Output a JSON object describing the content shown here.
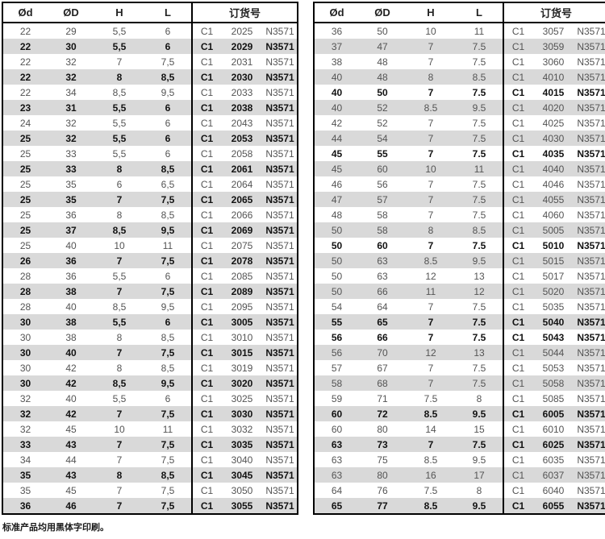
{
  "header": {
    "col_d": "Ød",
    "col_D": "ØD",
    "col_H": "H",
    "col_L": "L",
    "order": "订货号"
  },
  "footer_note": "标准产品均用黑体字印刷。",
  "colors": {
    "zebra": "#d9d9d9",
    "border": "#000000",
    "regular_text": "#545454",
    "bold_text": "#121212"
  },
  "tables": [
    {
      "rows": [
        {
          "cells": [
            "22",
            "29",
            "5,5",
            "6",
            "C1",
            "2025",
            "N3571"
          ],
          "bold": false
        },
        {
          "cells": [
            "22",
            "30",
            "5,5",
            "6",
            "C1",
            "2029",
            "N3571"
          ],
          "bold": true
        },
        {
          "cells": [
            "22",
            "32",
            "7",
            "7,5",
            "C1",
            "2031",
            "N3571"
          ],
          "bold": false
        },
        {
          "cells": [
            "22",
            "32",
            "8",
            "8,5",
            "C1",
            "2030",
            "N3571"
          ],
          "bold": true
        },
        {
          "cells": [
            "22",
            "34",
            "8,5",
            "9,5",
            "C1",
            "2033",
            "N3571"
          ],
          "bold": false
        },
        {
          "cells": [
            "23",
            "31",
            "5,5",
            "6",
            "C1",
            "2038",
            "N3571"
          ],
          "bold": true
        },
        {
          "cells": [
            "24",
            "32",
            "5,5",
            "6",
            "C1",
            "2043",
            "N3571"
          ],
          "bold": false
        },
        {
          "cells": [
            "25",
            "32",
            "5,5",
            "6",
            "C1",
            "2053",
            "N3571"
          ],
          "bold": true
        },
        {
          "cells": [
            "25",
            "33",
            "5,5",
            "6",
            "C1",
            "2058",
            "N3571"
          ],
          "bold": false
        },
        {
          "cells": [
            "25",
            "33",
            "8",
            "8,5",
            "C1",
            "2061",
            "N3571"
          ],
          "bold": true
        },
        {
          "cells": [
            "25",
            "35",
            "6",
            "6,5",
            "C1",
            "2064",
            "N3571"
          ],
          "bold": false
        },
        {
          "cells": [
            "25",
            "35",
            "7",
            "7,5",
            "C1",
            "2065",
            "N3571"
          ],
          "bold": true
        },
        {
          "cells": [
            "25",
            "36",
            "8",
            "8,5",
            "C1",
            "2066",
            "N3571"
          ],
          "bold": false
        },
        {
          "cells": [
            "25",
            "37",
            "8,5",
            "9,5",
            "C1",
            "2069",
            "N3571"
          ],
          "bold": true
        },
        {
          "cells": [
            "25",
            "40",
            "10",
            "11",
            "C1",
            "2075",
            "N3571"
          ],
          "bold": false
        },
        {
          "cells": [
            "26",
            "36",
            "7",
            "7,5",
            "C1",
            "2078",
            "N3571"
          ],
          "bold": true
        },
        {
          "cells": [
            "28",
            "36",
            "5,5",
            "6",
            "C1",
            "2085",
            "N3571"
          ],
          "bold": false
        },
        {
          "cells": [
            "28",
            "38",
            "7",
            "7,5",
            "C1",
            "2089",
            "N3571"
          ],
          "bold": true
        },
        {
          "cells": [
            "28",
            "40",
            "8,5",
            "9,5",
            "C1",
            "2095",
            "N3571"
          ],
          "bold": false
        },
        {
          "cells": [
            "30",
            "38",
            "5,5",
            "6",
            "C1",
            "3005",
            "N3571"
          ],
          "bold": true
        },
        {
          "cells": [
            "30",
            "38",
            "8",
            "8,5",
            "C1",
            "3010",
            "N3571"
          ],
          "bold": false
        },
        {
          "cells": [
            "30",
            "40",
            "7",
            "7,5",
            "C1",
            "3015",
            "N3571"
          ],
          "bold": true
        },
        {
          "cells": [
            "30",
            "42",
            "8",
            "8,5",
            "C1",
            "3019",
            "N3571"
          ],
          "bold": false
        },
        {
          "cells": [
            "30",
            "42",
            "8,5",
            "9,5",
            "C1",
            "3020",
            "N3571"
          ],
          "bold": true
        },
        {
          "cells": [
            "32",
            "40",
            "5,5",
            "6",
            "C1",
            "3025",
            "N3571"
          ],
          "bold": false
        },
        {
          "cells": [
            "32",
            "42",
            "7",
            "7,5",
            "C1",
            "3030",
            "N3571"
          ],
          "bold": true
        },
        {
          "cells": [
            "32",
            "45",
            "10",
            "11",
            "C1",
            "3032",
            "N3571"
          ],
          "bold": false
        },
        {
          "cells": [
            "33",
            "43",
            "7",
            "7,5",
            "C1",
            "3035",
            "N3571"
          ],
          "bold": true
        },
        {
          "cells": [
            "34",
            "44",
            "7",
            "7,5",
            "C1",
            "3040",
            "N3571"
          ],
          "bold": false
        },
        {
          "cells": [
            "35",
            "43",
            "8",
            "8,5",
            "C1",
            "3045",
            "N3571"
          ],
          "bold": true
        },
        {
          "cells": [
            "35",
            "45",
            "7",
            "7,5",
            "C1",
            "3050",
            "N3571"
          ],
          "bold": false
        },
        {
          "cells": [
            "36",
            "46",
            "7",
            "7,5",
            "C1",
            "3055",
            "N3571"
          ],
          "bold": true
        }
      ]
    },
    {
      "rows": [
        {
          "cells": [
            "36",
            "50",
            "10",
            "11",
            "C1",
            "3057",
            "N3571"
          ],
          "bold": false
        },
        {
          "cells": [
            "37",
            "47",
            "7",
            "7.5",
            "C1",
            "3059",
            "N3571"
          ],
          "bold": false
        },
        {
          "cells": [
            "38",
            "48",
            "7",
            "7.5",
            "C1",
            "3060",
            "N3571"
          ],
          "bold": false
        },
        {
          "cells": [
            "40",
            "48",
            "8",
            "8.5",
            "C1",
            "4010",
            "N3571"
          ],
          "bold": false
        },
        {
          "cells": [
            "40",
            "50",
            "7",
            "7.5",
            "C1",
            "4015",
            "N3571"
          ],
          "bold": true
        },
        {
          "cells": [
            "40",
            "52",
            "8.5",
            "9.5",
            "C1",
            "4020",
            "N3571"
          ],
          "bold": false
        },
        {
          "cells": [
            "42",
            "52",
            "7",
            "7.5",
            "C1",
            "4025",
            "N3571"
          ],
          "bold": false
        },
        {
          "cells": [
            "44",
            "54",
            "7",
            "7.5",
            "C1",
            "4030",
            "N3571"
          ],
          "bold": false
        },
        {
          "cells": [
            "45",
            "55",
            "7",
            "7.5",
            "C1",
            "4035",
            "N3571"
          ],
          "bold": true
        },
        {
          "cells": [
            "45",
            "60",
            "10",
            "11",
            "C1",
            "4040",
            "N3571"
          ],
          "bold": false
        },
        {
          "cells": [
            "46",
            "56",
            "7",
            "7.5",
            "C1",
            "4046",
            "N3571"
          ],
          "bold": false
        },
        {
          "cells": [
            "47",
            "57",
            "7",
            "7.5",
            "C1",
            "4055",
            "N3571"
          ],
          "bold": false
        },
        {
          "cells": [
            "48",
            "58",
            "7",
            "7.5",
            "C1",
            "4060",
            "N3571"
          ],
          "bold": false
        },
        {
          "cells": [
            "50",
            "58",
            "8",
            "8.5",
            "C1",
            "5005",
            "N3571"
          ],
          "bold": false
        },
        {
          "cells": [
            "50",
            "60",
            "7",
            "7.5",
            "C1",
            "5010",
            "N3571"
          ],
          "bold": true
        },
        {
          "cells": [
            "50",
            "63",
            "8.5",
            "9.5",
            "C1",
            "5015",
            "N3571"
          ],
          "bold": false
        },
        {
          "cells": [
            "50",
            "63",
            "12",
            "13",
            "C1",
            "5017",
            "N3571"
          ],
          "bold": false
        },
        {
          "cells": [
            "50",
            "66",
            "11",
            "12",
            "C1",
            "5020",
            "N3571"
          ],
          "bold": false
        },
        {
          "cells": [
            "54",
            "64",
            "7",
            "7.5",
            "C1",
            "5035",
            "N3571"
          ],
          "bold": false
        },
        {
          "cells": [
            "55",
            "65",
            "7",
            "7.5",
            "C1",
            "5040",
            "N3571"
          ],
          "bold": true
        },
        {
          "cells": [
            "56",
            "66",
            "7",
            "7.5",
            "C1",
            "5043",
            "N3571"
          ],
          "bold": true
        },
        {
          "cells": [
            "56",
            "70",
            "12",
            "13",
            "C1",
            "5044",
            "N3571"
          ],
          "bold": false
        },
        {
          "cells": [
            "57",
            "67",
            "7",
            "7.5",
            "C1",
            "5053",
            "N3571"
          ],
          "bold": false
        },
        {
          "cells": [
            "58",
            "68",
            "7",
            "7.5",
            "C1",
            "5058",
            "N3571"
          ],
          "bold": false
        },
        {
          "cells": [
            "59",
            "71",
            "7.5",
            "8",
            "C1",
            "5085",
            "N3571"
          ],
          "bold": false
        },
        {
          "cells": [
            "60",
            "72",
            "8.5",
            "9.5",
            "C1",
            "6005",
            "N3571"
          ],
          "bold": true
        },
        {
          "cells": [
            "60",
            "80",
            "14",
            "15",
            "C1",
            "6010",
            "N3571"
          ],
          "bold": false
        },
        {
          "cells": [
            "63",
            "73",
            "7",
            "7.5",
            "C1",
            "6025",
            "N3571"
          ],
          "bold": true
        },
        {
          "cells": [
            "63",
            "75",
            "8.5",
            "9.5",
            "C1",
            "6035",
            "N3571"
          ],
          "bold": false
        },
        {
          "cells": [
            "63",
            "80",
            "16",
            "17",
            "C1",
            "6037",
            "N3571"
          ],
          "bold": false
        },
        {
          "cells": [
            "64",
            "76",
            "7.5",
            "8",
            "C1",
            "6040",
            "N3571"
          ],
          "bold": false
        },
        {
          "cells": [
            "65",
            "77",
            "8.5",
            "9.5",
            "C1",
            "6055",
            "N3571"
          ],
          "bold": true
        }
      ]
    }
  ]
}
